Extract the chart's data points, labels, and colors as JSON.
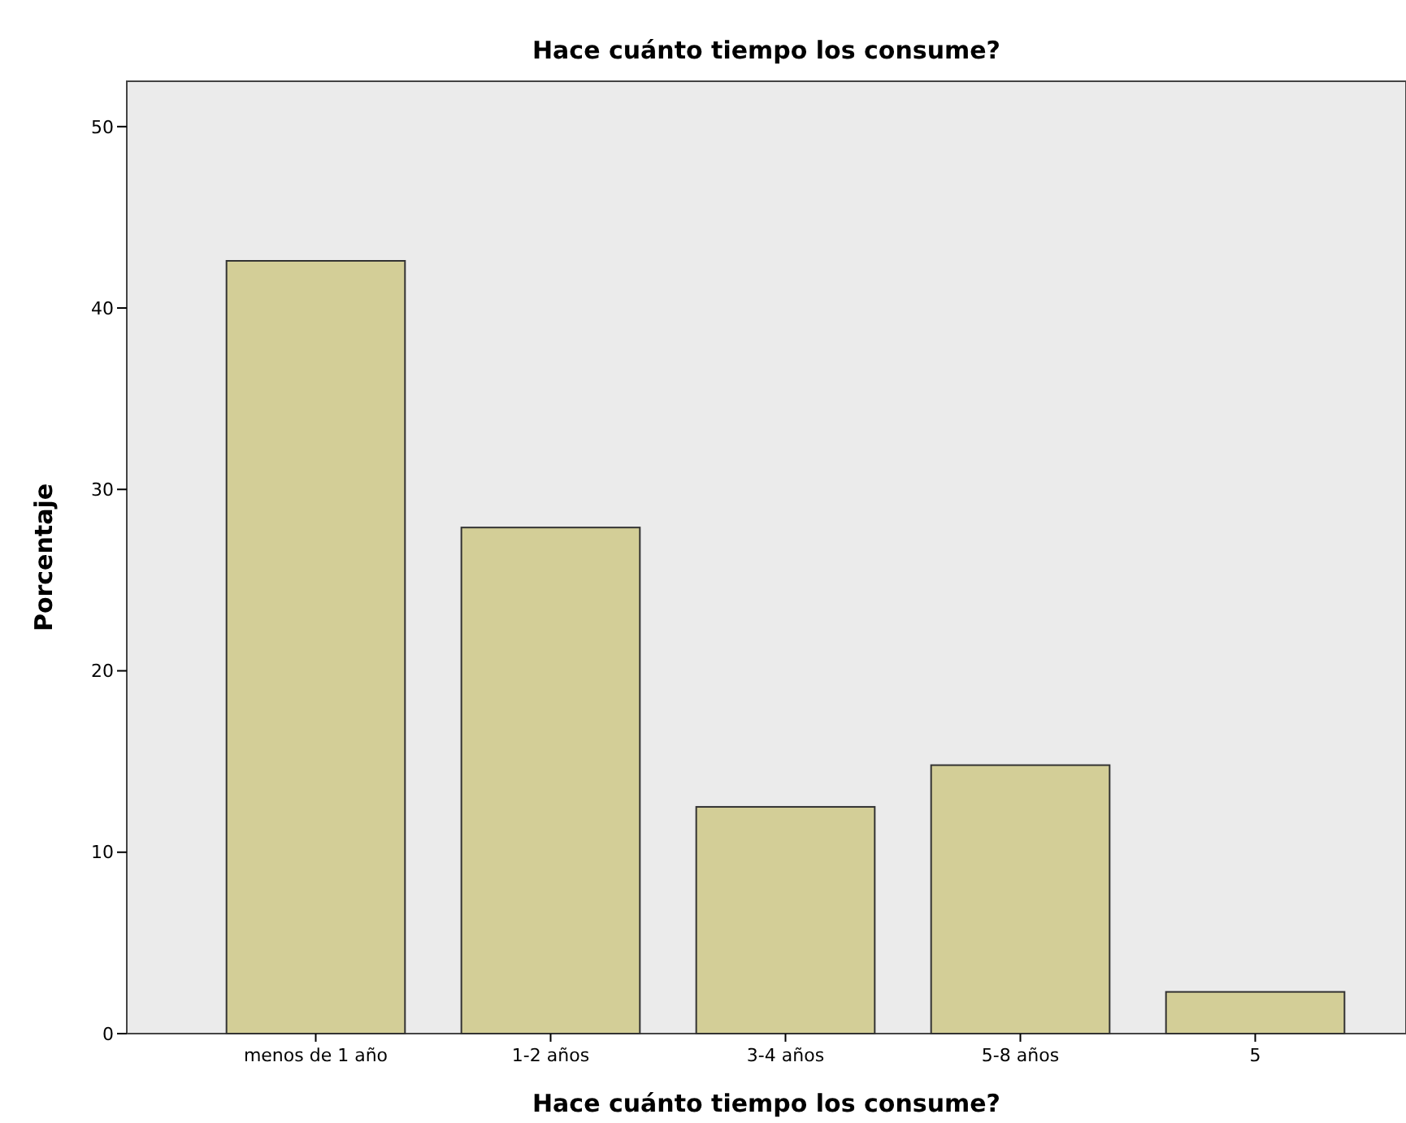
{
  "chart_data": {
    "type": "bar",
    "title": "Hace cuánto tiempo los consume?",
    "xlabel": "Hace cuánto tiempo los consume?",
    "ylabel": "Porcentaje",
    "categories": [
      "menos de 1 año",
      "1-2 años",
      "3-4 años",
      "5-8 años",
      "5"
    ],
    "values": [
      42.6,
      27.9,
      12.5,
      14.8,
      2.3
    ],
    "color": "#d3ce97",
    "ylim": [
      0,
      52.5
    ],
    "yticks": [
      0,
      10,
      20,
      30,
      40,
      50
    ],
    "grid": false
  }
}
